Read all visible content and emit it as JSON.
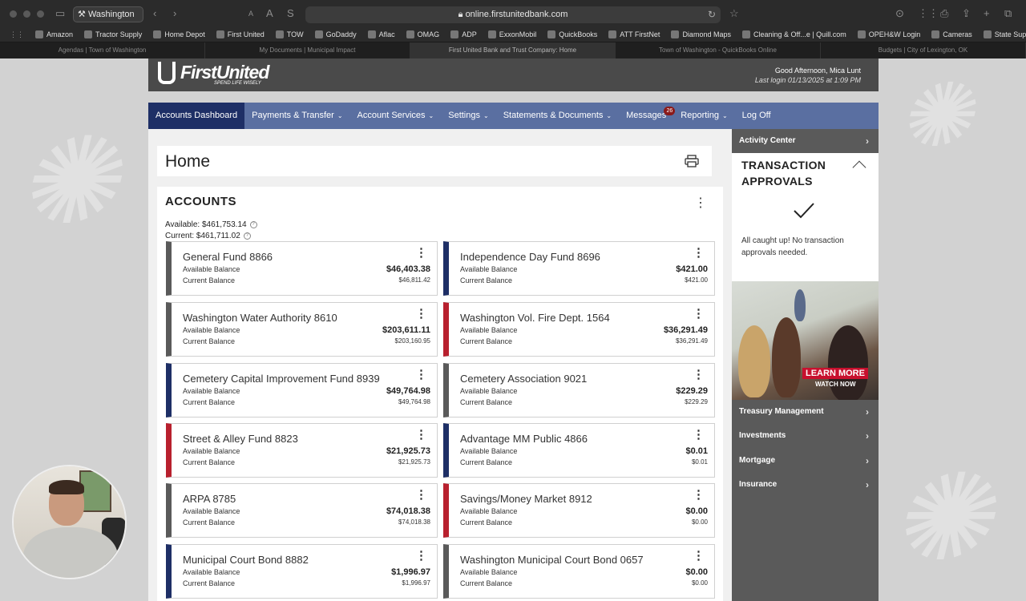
{
  "browser": {
    "profile_label": "Washington",
    "url": "online.firstunitedbank.com",
    "bookmarks": [
      "Amazon",
      "Tractor Supply",
      "Home Depot",
      "First United",
      "TOW",
      "GoDaddy",
      "Aflac",
      "OMAG",
      "ADP",
      "ExxonMobil",
      "QuickBooks",
      "ATT FirstNet",
      "Diamond Maps",
      "Cleaning & Off...e | Quill.com",
      "OPEH&W Login",
      "Cameras",
      "State Supplier Portal"
    ],
    "tabs": [
      "Agendas | Town of Washington",
      "My Documents | Municipal Impact",
      "First United Bank and Trust Company: Home",
      "Town of Washington - QuickBooks Online",
      "Budgets | City of Lexington, OK"
    ]
  },
  "header": {
    "logo_text": "FirstUnited",
    "logo_tagline": "SPEND LIFE WISELY",
    "greeting": "Good Afternoon, Mica Lunt",
    "last_login": "Last login 01/13/2025 at 1:09 PM"
  },
  "nav": {
    "items": [
      "Accounts Dashboard",
      "Payments & Transfer",
      "Account Services",
      "Settings",
      "Statements & Documents",
      "Messages",
      "Reporting",
      "Log Off"
    ],
    "messages_count": "26"
  },
  "main": {
    "page_title": "Home",
    "accounts_title": "ACCOUNTS",
    "available_total": "Available: $461,753.14",
    "current_total": "Current: $461,711.02",
    "available_label": "Available Balance",
    "current_label": "Current Balance",
    "accounts": [
      {
        "name": "General Fund 8866",
        "available": "$46,403.38",
        "current": "$46,811.42",
        "color": "#5a5a5a"
      },
      {
        "name": "Independence Day Fund 8696",
        "available": "$421.00",
        "current": "$421.00",
        "color": "#1e2f66"
      },
      {
        "name": "Washington Water Authority 8610",
        "available": "$203,611.11",
        "current": "$203,160.95",
        "color": "#5a5a5a"
      },
      {
        "name": "Washington Vol. Fire Dept. 1564",
        "available": "$36,291.49",
        "current": "$36,291.49",
        "color": "#b8202e"
      },
      {
        "name": "Cemetery Capital Improvement Fund 8939",
        "available": "$49,764.98",
        "current": "$49,764.98",
        "color": "#1e2f66"
      },
      {
        "name": "Cemetery Association 9021",
        "available": "$229.29",
        "current": "$229.29",
        "color": "#5a5a5a"
      },
      {
        "name": "Street & Alley Fund 8823",
        "available": "$21,925.73",
        "current": "$21,925.73",
        "color": "#b8202e"
      },
      {
        "name": "Advantage MM Public 4866",
        "available": "$0.01",
        "current": "$0.01",
        "color": "#1e2f66"
      },
      {
        "name": "ARPA 8785",
        "available": "$74,018.38",
        "current": "$74,018.38",
        "color": "#5a5a5a"
      },
      {
        "name": "Savings/Money Market 8912",
        "available": "$0.00",
        "current": "$0.00",
        "color": "#b8202e"
      },
      {
        "name": "Municipal Court Bond 8882",
        "available": "$1,996.97",
        "current": "$1,996.97",
        "color": "#1e2f66"
      },
      {
        "name": "Washington Municipal Court Bond 0657",
        "available": "$0.00",
        "current": "$0.00",
        "color": "#5a5a5a"
      }
    ]
  },
  "sidebar": {
    "activity_center": "Activity Center",
    "approvals_title_1": "TRANSACTION",
    "approvals_title_2": "APPROVALS",
    "approvals_message": "All caught up! No transaction approvals needed.",
    "promo_cta": "LEARN MORE",
    "promo_sub": "WATCH NOW",
    "links": [
      "Treasury Management",
      "Investments",
      "Mortgage",
      "Insurance"
    ]
  }
}
